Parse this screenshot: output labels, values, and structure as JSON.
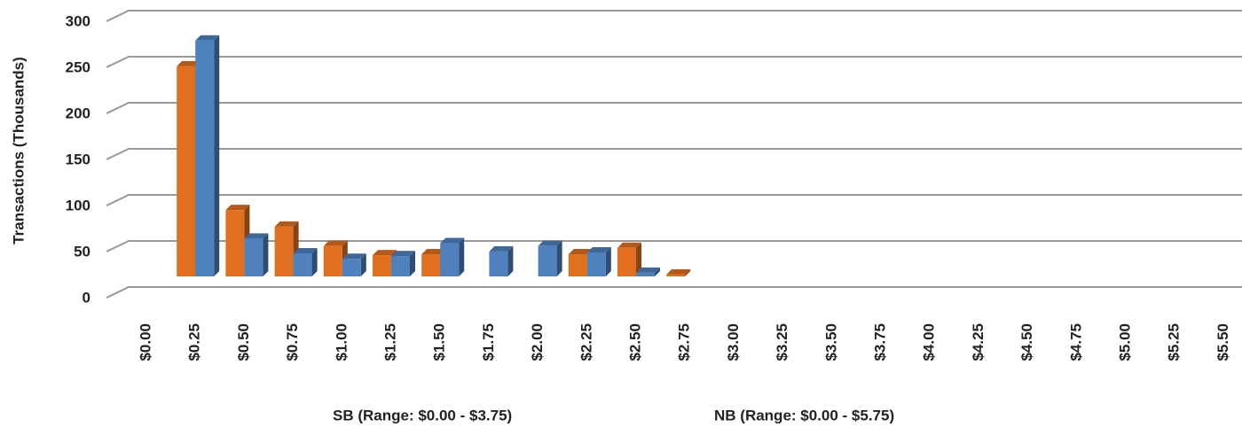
{
  "chart_data": {
    "type": "bar",
    "y_label": "Transactions (Thousands)",
    "categories": [
      "$0.00",
      "$0.25",
      "$0.50",
      "$0.75",
      "$1.00",
      "$1.25",
      "$1.50",
      "$1.75",
      "$2.00",
      "$2.25",
      "$2.50",
      "$2.75",
      "$3.00",
      "$3.25",
      "$3.50",
      "$3.75",
      "$4.00",
      "$4.25",
      "$4.50",
      "$4.75",
      "$5.00",
      "$5.25",
      "$5.50"
    ],
    "series": [
      {
        "name": "SB (Range: $0.00 - $3.75)",
        "color": "#e07020",
        "values": [
          0,
          228,
          72,
          54,
          33,
          23,
          24,
          0,
          0,
          24,
          31,
          2,
          0,
          0,
          0,
          0,
          0,
          0,
          0,
          0,
          0,
          0,
          0
        ]
      },
      {
        "name": "NB (Range: $0.00 - $5.75)",
        "color": "#4f81bd",
        "values": [
          0,
          256,
          41,
          25,
          19,
          22,
          36,
          27,
          33,
          26,
          4,
          0,
          0,
          0,
          0,
          0,
          0,
          0,
          0,
          0,
          0,
          0,
          0
        ]
      }
    ],
    "ylim": [
      0,
      300
    ],
    "yticks": [
      0,
      50,
      100,
      150,
      200,
      250,
      300
    ],
    "grid": true
  }
}
